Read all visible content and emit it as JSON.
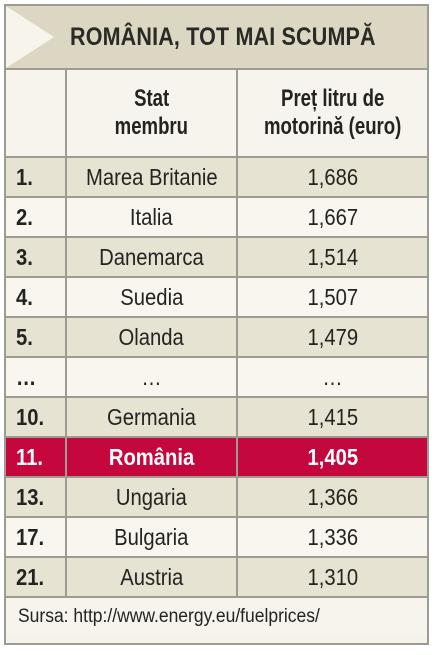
{
  "title": "ROMÂNIA, TOT MAI SCUMPĂ",
  "headers": {
    "rank": "",
    "country_line1": "Stat",
    "country_line2": "membru",
    "price_line1": "Preț litru de",
    "price_line2": "motorină (euro)"
  },
  "rows": [
    {
      "rank": "1.",
      "country": "Marea Britanie",
      "price": "1,686"
    },
    {
      "rank": "2.",
      "country": "Italia",
      "price": "1,667"
    },
    {
      "rank": "3.",
      "country": "Danemarca",
      "price": "1,514"
    },
    {
      "rank": "4.",
      "country": "Suedia",
      "price": "1,507"
    },
    {
      "rank": "5.",
      "country": "Olanda",
      "price": "1,479"
    },
    {
      "rank": "…",
      "country": "…",
      "price": "…"
    },
    {
      "rank": "10.",
      "country": "Germania",
      "price": "1,415"
    },
    {
      "rank": "11.",
      "country": "România",
      "price": "1,405"
    },
    {
      "rank": "13.",
      "country": "Ungaria",
      "price": "1,366"
    },
    {
      "rank": "17.",
      "country": "Bulgaria",
      "price": "1,336"
    },
    {
      "rank": "21.",
      "country": "Austria",
      "price": "1,310"
    }
  ],
  "highlight_row": 7,
  "source": "Sursa: http://www.energy.eu/fuelprices/",
  "colors": {
    "highlight": "#c4083d",
    "title_bg": "#dcd7c3",
    "row_shaded": "#e7e3d3",
    "row_light": "#f8f6ee",
    "border": "#9d9b92"
  }
}
